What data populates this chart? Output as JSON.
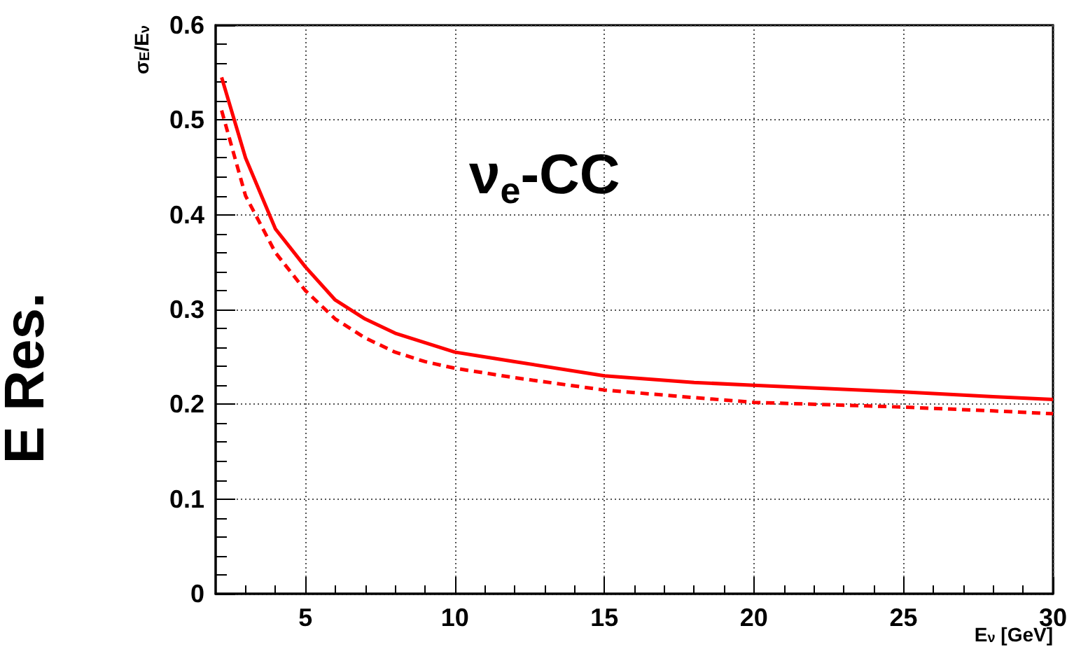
{
  "chart_data": {
    "type": "line",
    "xlabel": "E$_{ν}$ [GeV]",
    "ylabel": "σ$_{E}$/E$_{ν}$",
    "annotations": [
      "ν$_{e}$-CC",
      "E Res."
    ],
    "x": [
      2.2,
      3,
      4,
      5,
      6,
      7,
      8,
      9,
      10,
      12,
      15,
      18,
      20,
      25,
      28,
      30
    ],
    "series": [
      {
        "color": "#ff0000",
        "line_style": "solid",
        "values": [
          0.545,
          0.46,
          0.385,
          0.345,
          0.31,
          0.29,
          0.275,
          0.265,
          0.255,
          0.245,
          0.23,
          0.223,
          0.22,
          0.213,
          0.208,
          0.205
        ]
      },
      {
        "color": "#ff0000",
        "line_style": "dashed",
        "values": [
          0.51,
          0.42,
          0.36,
          0.32,
          0.29,
          0.27,
          0.255,
          0.245,
          0.238,
          0.228,
          0.215,
          0.207,
          0.202,
          0.197,
          0.193,
          0.19
        ]
      }
    ],
    "xlim": [
      2,
      30
    ],
    "xticks": [
      5,
      10,
      15,
      20,
      25,
      30
    ],
    "ylim": [
      0,
      0.6
    ],
    "yticks": [
      0,
      0.1,
      0.2,
      0.3,
      0.4,
      0.5,
      0.6
    ],
    "grid": true,
    "marker": "none"
  }
}
